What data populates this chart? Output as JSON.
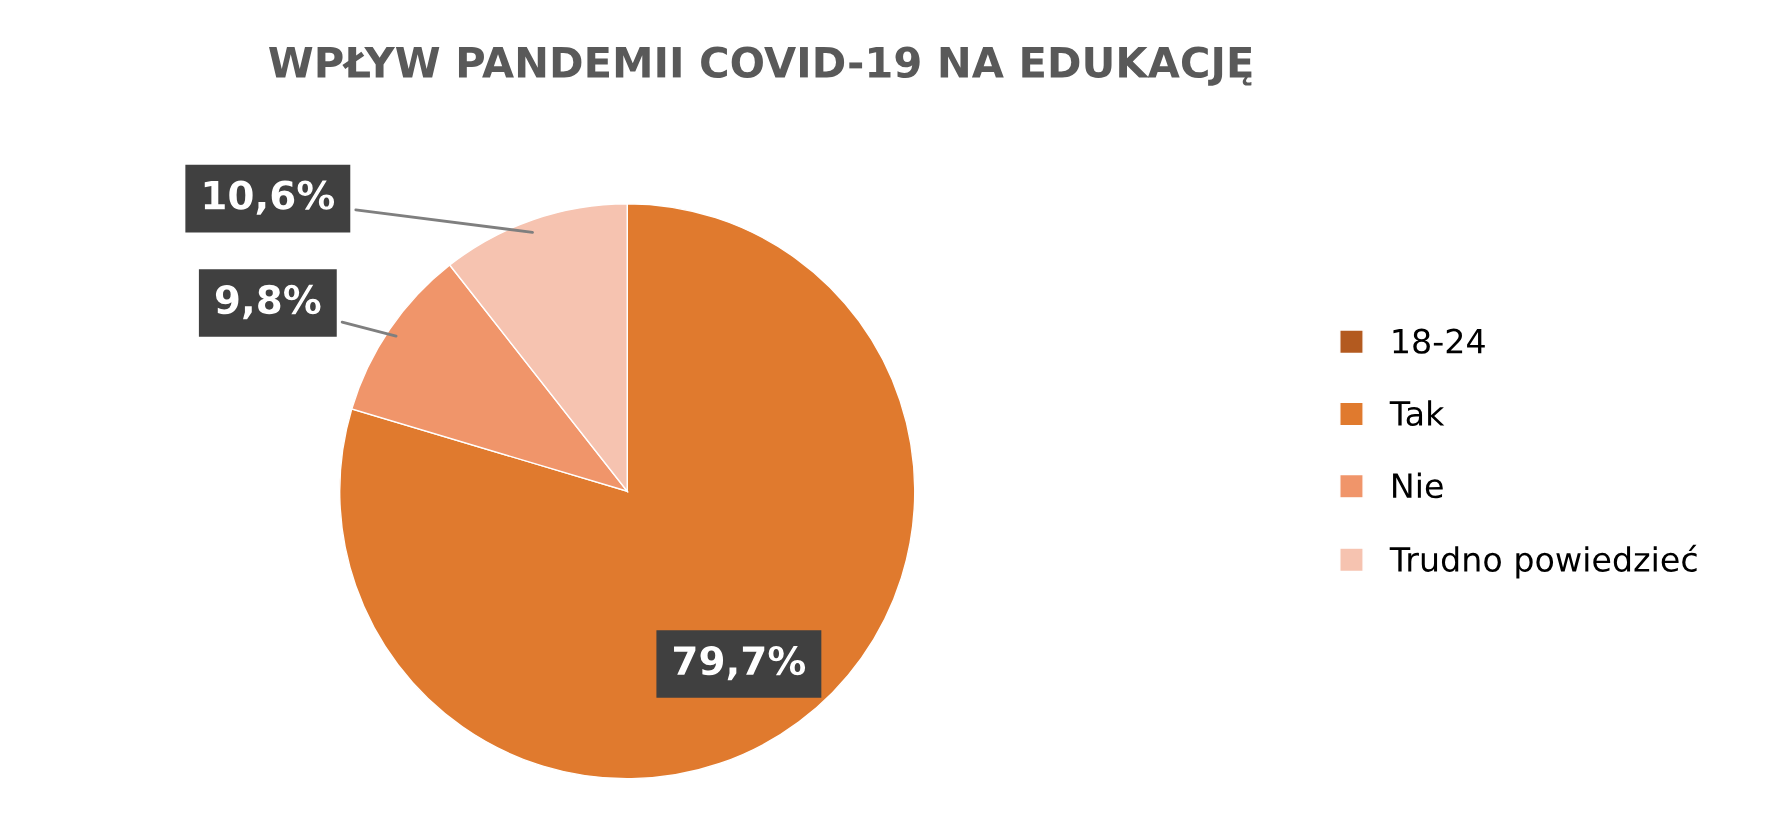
{
  "chart_data": {
    "type": "pie",
    "title": "WPŁYW PANDEMII COVID-19 NA EDUKACJĘ",
    "categories": [
      "18-24",
      "Tak",
      "Nie",
      "Trudno powiedzieć"
    ],
    "values": [
      0,
      79.7,
      9.8,
      10.6
    ],
    "colors": [
      "#b35a1f",
      "#e07a2e",
      "#f0956a",
      "#f6c3b0"
    ],
    "value_labels": [
      null,
      "79,7%",
      "9,8%",
      "10,6%"
    ],
    "legend": "right"
  }
}
